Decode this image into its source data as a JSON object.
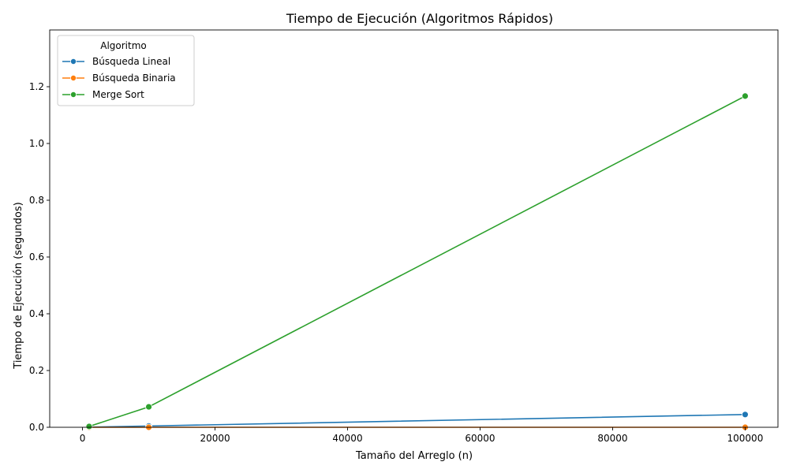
{
  "chart_data": {
    "type": "line",
    "title": "Tiempo de Ejecución (Algoritmos Rápidos)",
    "xlabel": "Tamaño del Arreglo (n)",
    "ylabel": "Tiempo de Ejecución (segundos)",
    "xlim": [
      -4950,
      104950
    ],
    "ylim": [
      0,
      1.4
    ],
    "xticks": [
      0,
      20000,
      40000,
      60000,
      80000,
      100000
    ],
    "xtick_labels": [
      "0",
      "20000",
      "40000",
      "60000",
      "80000",
      "100000"
    ],
    "yticks": [
      0.0,
      0.2,
      0.4,
      0.6,
      0.8,
      1.0,
      1.2
    ],
    "ytick_labels": [
      "0.0",
      "0.2",
      "0.4",
      "0.6",
      "0.8",
      "1.0",
      "1.2"
    ],
    "grid": false,
    "legend": {
      "title": "Algoritmo",
      "placement": "top-left"
    },
    "x": [
      1000,
      10000,
      100000
    ],
    "series": [
      {
        "name": "Búsqueda Lineal",
        "color": "#1f77b4",
        "values": [
          0.0005,
          0.0045,
          0.045
        ]
      },
      {
        "name": "Búsqueda Binaria",
        "color": "#ff7f0e",
        "values": [
          1e-05,
          2e-05,
          2e-05
        ]
      },
      {
        "name": "Merge Sort",
        "color": "#2ca02c",
        "values": [
          0.003,
          0.072,
          1.167
        ]
      }
    ]
  }
}
